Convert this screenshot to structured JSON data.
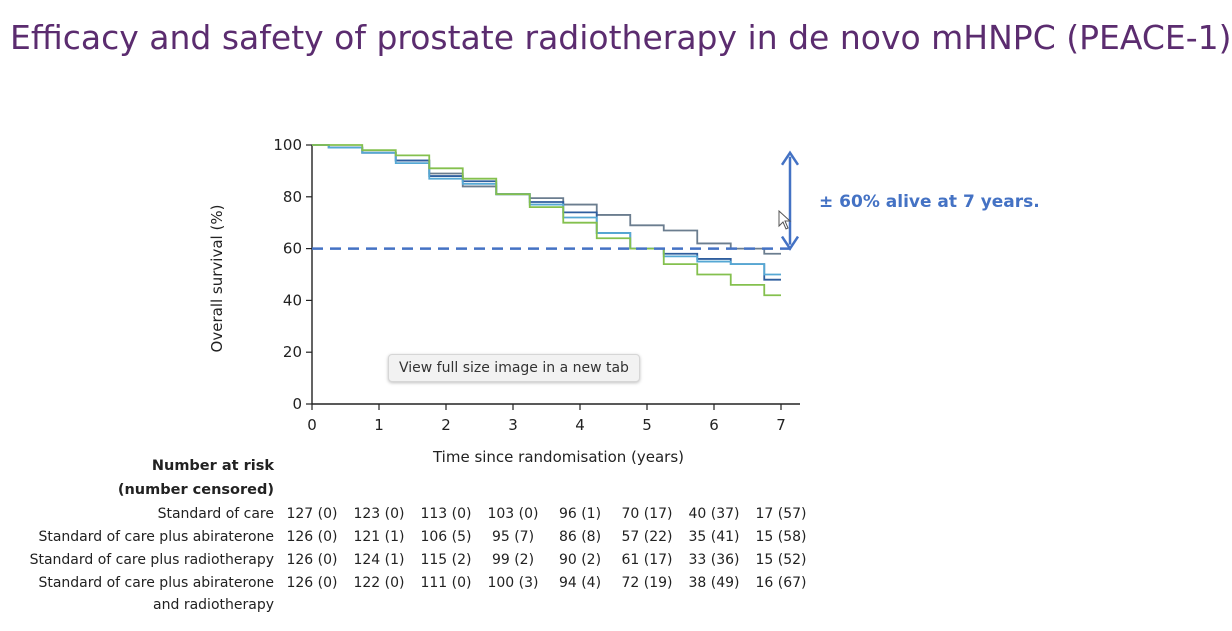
{
  "slide": {
    "title": "Efficacy and safety of prostate radiotherapy in de novo mHNPC (PEACE-1)",
    "annotation": "± 60% alive at 7 years.",
    "tooltip": "View full size image in a new tab"
  },
  "chart_data": {
    "type": "line",
    "xlabel": "Time since randomisation (years)",
    "ylabel": "Overall survival (%)",
    "xlim": [
      0,
      7
    ],
    "ylim": [
      0,
      100
    ],
    "xticks": [
      "0",
      "1",
      "2",
      "3",
      "4",
      "5",
      "6",
      "7"
    ],
    "yticks": [
      "0",
      "20",
      "40",
      "60",
      "80",
      "100"
    ],
    "reference_line_y": 60,
    "annotation_arrow_y": [
      60,
      97
    ],
    "series": [
      {
        "color": "#6b7d8f",
        "points": [
          [
            0,
            100
          ],
          [
            0.5,
            99
          ],
          [
            1,
            97
          ],
          [
            1.5,
            94
          ],
          [
            2,
            89
          ],
          [
            2.5,
            84
          ],
          [
            3,
            81
          ],
          [
            3.5,
            79.5
          ],
          [
            4,
            77
          ],
          [
            4.5,
            73
          ],
          [
            5,
            69
          ],
          [
            5.5,
            67
          ],
          [
            6,
            62
          ],
          [
            6.5,
            60
          ],
          [
            7,
            58
          ]
        ]
      },
      {
        "color": "#2f5e9e",
        "points": [
          [
            0,
            100
          ],
          [
            0.5,
            99
          ],
          [
            1,
            97
          ],
          [
            1.5,
            94
          ],
          [
            2,
            88
          ],
          [
            2.5,
            86
          ],
          [
            3,
            81
          ],
          [
            3.5,
            78
          ],
          [
            4,
            74
          ],
          [
            4.5,
            66
          ],
          [
            5,
            60
          ],
          [
            5.5,
            58
          ],
          [
            6,
            56
          ],
          [
            6.5,
            54
          ],
          [
            7,
            48
          ]
        ]
      },
      {
        "color": "#56a8d4",
        "points": [
          [
            0,
            100
          ],
          [
            0.5,
            99
          ],
          [
            1,
            97
          ],
          [
            1.5,
            93
          ],
          [
            2,
            87
          ],
          [
            2.5,
            85
          ],
          [
            3,
            81
          ],
          [
            3.5,
            77
          ],
          [
            4,
            72
          ],
          [
            4.5,
            66
          ],
          [
            5,
            60
          ],
          [
            5.5,
            57
          ],
          [
            6,
            55
          ],
          [
            6.5,
            54
          ],
          [
            7,
            50
          ]
        ]
      },
      {
        "color": "#84c04e",
        "points": [
          [
            0,
            100
          ],
          [
            0.5,
            100
          ],
          [
            1,
            98
          ],
          [
            1.5,
            96
          ],
          [
            2,
            91
          ],
          [
            2.5,
            87
          ],
          [
            3,
            81
          ],
          [
            3.5,
            76
          ],
          [
            4,
            70
          ],
          [
            4.5,
            64
          ],
          [
            5,
            60
          ],
          [
            5.5,
            54
          ],
          [
            6,
            50
          ],
          [
            6.5,
            46
          ],
          [
            7,
            42
          ]
        ]
      }
    ]
  },
  "risk_table": {
    "heading_line1": "Number at risk",
    "heading_line2": "(number censored)",
    "rows": [
      {
        "label": "Standard of care",
        "values": [
          "127 (0)",
          "123 (0)",
          "113 (0)",
          "103 (0)",
          "96 (1)",
          "70 (17)",
          "40 (37)",
          "17 (57)"
        ]
      },
      {
        "label": "Standard of care plus abiraterone",
        "values": [
          "126 (0)",
          "121 (1)",
          "106 (5)",
          "95 (7)",
          "86 (8)",
          "57 (22)",
          "35 (41)",
          "15 (58)"
        ]
      },
      {
        "label": "Standard of care plus radiotherapy",
        "values": [
          "126 (0)",
          "124 (1)",
          "115 (2)",
          "99 (2)",
          "90 (2)",
          "61 (17)",
          "33 (36)",
          "15 (52)"
        ]
      },
      {
        "label": "Standard of care plus abiraterone",
        "label_line2": "and radiotherapy",
        "values": [
          "126 (0)",
          "122 (0)",
          "111 (0)",
          "100 (3)",
          "94 (4)",
          "72 (19)",
          "38 (49)",
          "16 (67)"
        ]
      }
    ]
  }
}
